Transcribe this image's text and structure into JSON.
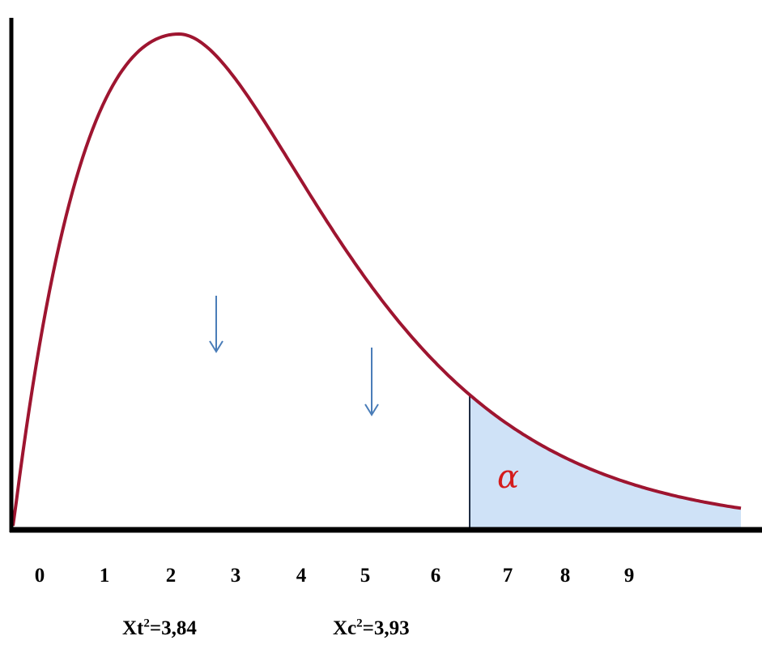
{
  "chart_data": {
    "type": "area",
    "distribution": "chi-square density curve",
    "x_ticks": [
      "0",
      "1",
      "2",
      "3",
      "4",
      "5",
      "6",
      "7",
      "8",
      "9"
    ],
    "critical_region_label": "α",
    "annotations": {
      "table_value": {
        "prefix": "Xt",
        "sup": "2",
        "suffix": "=3,84"
      },
      "calculated_value": {
        "prefix": "Xc",
        "sup": "2",
        "suffix": "=3,93"
      }
    },
    "colors": {
      "curve": "#9e1530",
      "shaded_region": "#cfe2f7",
      "arrows": "#4a7db8",
      "alpha": "#d41c1c",
      "axes": "#000000"
    }
  }
}
